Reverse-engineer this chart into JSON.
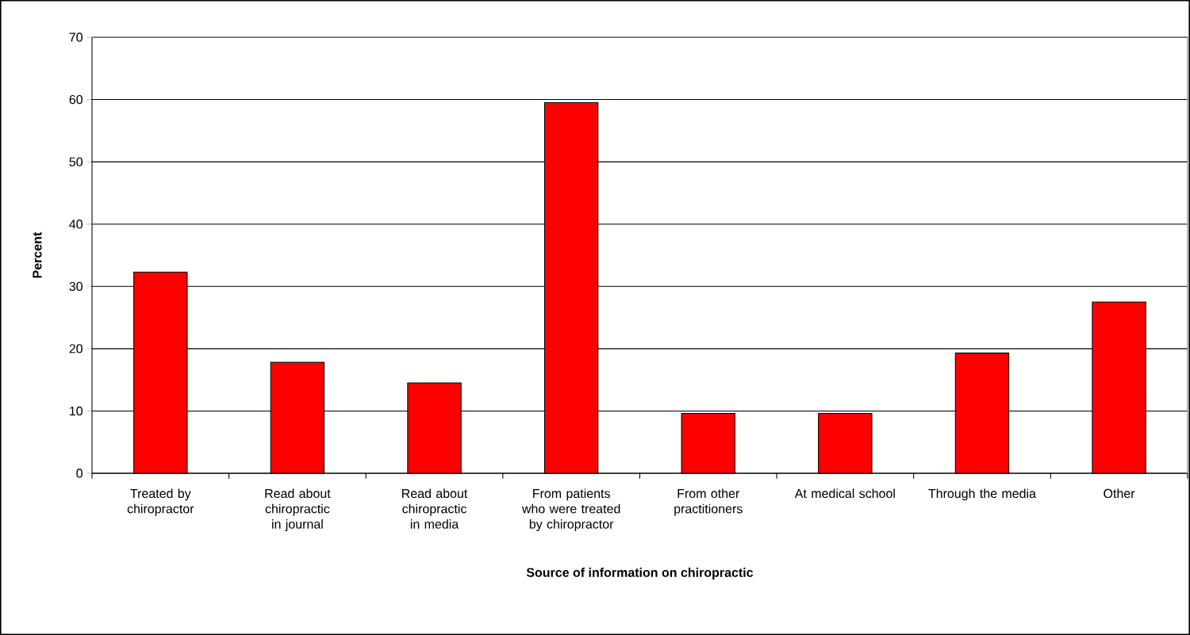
{
  "chart_data": {
    "type": "bar",
    "xlabel": "Source of information on chiropractic",
    "ylabel": "Percent",
    "categories": [
      "Treated by chiropractor",
      "Read about chiropractic in journal",
      "Read about chiropractic in media",
      "From patients who were treated by chiropractor",
      "From other practitioners",
      "At medical school",
      "Through the media",
      "Other"
    ],
    "values": [
      32.3,
      17.8,
      14.5,
      59.5,
      9.6,
      9.6,
      19.3,
      27.5
    ],
    "color": "#ff0000",
    "ylim": [
      0,
      70
    ],
    "yticks": [
      0,
      10,
      20,
      30,
      40,
      50,
      60,
      70
    ],
    "grid": "y"
  }
}
